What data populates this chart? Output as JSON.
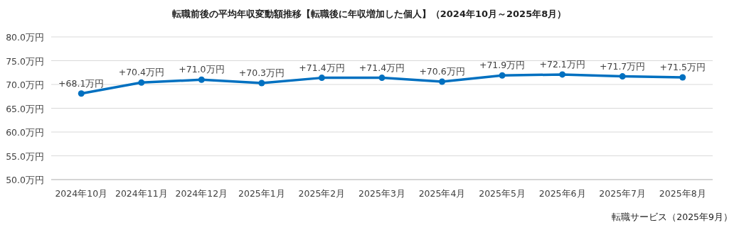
{
  "chart_data": {
    "type": "line",
    "title": "転職前後の平均年収変動額推移【転職後に年収増加した個人】（2024年10月～2025年8月）",
    "categories": [
      "2024年10月",
      "2024年11月",
      "2024年12月",
      "2025年1月",
      "2025年2月",
      "2025年3月",
      "2025年4月",
      "2025年5月",
      "2025年6月",
      "2025年7月",
      "2025年8月"
    ],
    "values": [
      68.1,
      70.4,
      71.0,
      70.3,
      71.4,
      71.4,
      70.6,
      71.9,
      72.1,
      71.7,
      71.5
    ],
    "value_labels": [
      "+68.1万円",
      "+70.4万円",
      "+71.0万円",
      "+70.3万円",
      "+71.4万円",
      "+71.4万円",
      "+70.6万円",
      "+71.9万円",
      "+72.1万円",
      "+71.7万円",
      "+71.5万円"
    ],
    "color": "#0070c0",
    "ylim": [
      50,
      80
    ],
    "yticks": [
      {
        "value": 50,
        "label": "50.0万円"
      },
      {
        "value": 55,
        "label": "55.0万円"
      },
      {
        "value": 60,
        "label": "60.0万円"
      },
      {
        "value": 65,
        "label": "65.0万円"
      },
      {
        "value": 70,
        "label": "70.0万円"
      },
      {
        "value": 75,
        "label": "75.0万円"
      },
      {
        "value": 80,
        "label": "80.0万円"
      }
    ],
    "grid": "y",
    "marker": "circle",
    "line_style": "solid",
    "annotations": [
      "転職サービス（2025年9月）"
    ]
  }
}
